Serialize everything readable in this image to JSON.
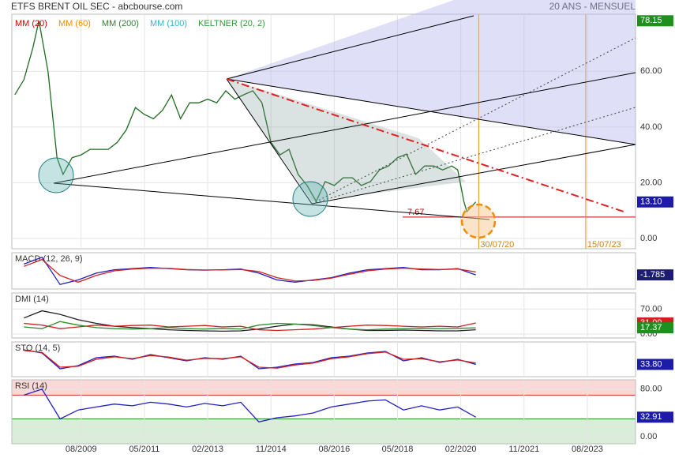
{
  "chart_data": [
    {
      "type": "line",
      "title": "ETFS BRENT OIL SEC - abcbourse.com",
      "subtitle": "20 ANS - MENSUEL",
      "legend": [
        {
          "name": "MM (20)",
          "color": "#d00000"
        },
        {
          "name": "MM (60)",
          "color": "#f08c00"
        },
        {
          "name": "MM (200)",
          "color": "#2e7d32"
        },
        {
          "name": "MM (100)",
          "color": "#3ab0c8"
        },
        {
          "name": "KELTNER (20, 2)",
          "color": "#2e9a3a"
        }
      ],
      "x": [
        "10/2007",
        "01/2008",
        "04/2008",
        "06/2008",
        "09/2008",
        "12/2008",
        "02/2009",
        "05/2009",
        "08/2009",
        "11/2009",
        "02/2010",
        "05/2010",
        "08/2010",
        "11/2010",
        "02/2011",
        "05/2011",
        "08/2011",
        "11/2011",
        "02/2012",
        "05/2012",
        "08/2012",
        "11/2012",
        "02/2013",
        "05/2013",
        "08/2013",
        "11/2013",
        "02/2014",
        "05/2014",
        "08/2014",
        "11/2014",
        "02/2015",
        "05/2015",
        "08/2015",
        "11/2015",
        "02/2016",
        "05/2016",
        "08/2016",
        "11/2016",
        "02/2017",
        "05/2017",
        "08/2017",
        "11/2017",
        "02/2018",
        "05/2018",
        "08/2018",
        "11/2018",
        "02/2019",
        "05/2019",
        "08/2019",
        "11/2019",
        "01/2020",
        "03/2020",
        "04/2020",
        "07/2020"
      ],
      "series": [
        {
          "color": "#1f6b1f",
          "badge": "#1c1ca8",
          "values": [
            51.6,
            57,
            68.5,
            78.15,
            60,
            29,
            23,
            29,
            30,
            32,
            32,
            32,
            34.5,
            39,
            47,
            44.5,
            43,
            46,
            51.5,
            43,
            48.7,
            48.7,
            50,
            48.7,
            53,
            50,
            51.6,
            53,
            48.7,
            34.5,
            30,
            32,
            23,
            19,
            13.3,
            20.4,
            19,
            21.8,
            21.8,
            19,
            20.4,
            24.6,
            26,
            29,
            30.3,
            23,
            26,
            26,
            24.6,
            26,
            24.6,
            13.3,
            9.6,
            13.1
          ],
          "last_label": "13.10"
        }
      ],
      "high": 78.15,
      "high_label": "78.15",
      "annotations": [
        {
          "label": "7.67",
          "value": 7.67
        }
      ],
      "date_lines": [
        {
          "label": "30/07/20"
        },
        {
          "label": "15/07/23"
        }
      ],
      "xlim": [
        "09/2007",
        "12/2024"
      ],
      "xticks": [
        "08/2009",
        "05/2011",
        "02/2013",
        "11/2014",
        "08/2016",
        "05/2018",
        "02/2020",
        "11/2021",
        "08/2023"
      ],
      "ylim": [
        -3.7,
        80.5
      ],
      "yticks": [
        {
          "value": 0,
          "label": "0.00"
        },
        {
          "value": 20,
          "label": "20.00"
        },
        {
          "value": 40,
          "label": "40.00"
        },
        {
          "value": 60,
          "label": "60.00"
        }
      ],
      "grid": true
    },
    {
      "type": "line",
      "title": "MACD (12, 26, 9)",
      "x": [
        "01/2008",
        "07/2008",
        "01/2009",
        "07/2009",
        "01/2010",
        "07/2010",
        "01/2011",
        "07/2011",
        "01/2012",
        "07/2012",
        "01/2013",
        "07/2013",
        "01/2014",
        "07/2014",
        "01/2015",
        "07/2015",
        "01/2016",
        "07/2016",
        "01/2017",
        "07/2017",
        "01/2018",
        "07/2018",
        "01/2019",
        "07/2019",
        "01/2020",
        "07/2020"
      ],
      "series": [
        {
          "color": "#2020c0",
          "badge": "#1c1c70",
          "values": [
            3,
            6,
            -6,
            -4,
            -1,
            0.5,
            1,
            1.5,
            1,
            0.5,
            0.3,
            0.5,
            0.8,
            -1,
            -4,
            -5,
            -4,
            -3,
            -1,
            0.5,
            1,
            1.5,
            0.5,
            0.5,
            1,
            -1.785
          ],
          "last_label": "-1.785"
        },
        {
          "color": "#d02020",
          "values": [
            2,
            5,
            -2,
            -5,
            -2,
            0,
            0.8,
            1.2,
            1.1,
            0.6,
            0.4,
            0.4,
            0.6,
            -0.3,
            -3,
            -4.5,
            -4.2,
            -3.2,
            -1.5,
            0,
            0.8,
            1.2,
            0.8,
            0.6,
            0.8,
            -0.5
          ]
        }
      ],
      "ylim": [
        -8,
        8
      ],
      "yticks": []
    },
    {
      "type": "line",
      "title": "DMI (14)",
      "x": [
        "01/2008",
        "07/2008",
        "01/2009",
        "07/2009",
        "01/2010",
        "07/2010",
        "01/2011",
        "07/2011",
        "01/2012",
        "07/2012",
        "01/2013",
        "07/2013",
        "01/2014",
        "07/2014",
        "01/2015",
        "07/2015",
        "01/2016",
        "07/2016",
        "01/2017",
        "07/2017",
        "01/2018",
        "07/2018",
        "01/2019",
        "07/2019",
        "01/2020",
        "07/2020"
      ],
      "series": [
        {
          "color": "#202020",
          "values": [
            45,
            65,
            55,
            40,
            30,
            22,
            18,
            15,
            12,
            10,
            9,
            8,
            9,
            14,
            22,
            28,
            26,
            20,
            14,
            10,
            10,
            11,
            10,
            9,
            9,
            12
          ]
        },
        {
          "color": "#d02020",
          "badge": "#d02020",
          "values": [
            30,
            25,
            15,
            20,
            25,
            22,
            24,
            25,
            20,
            22,
            24,
            20,
            22,
            12,
            10,
            12,
            14,
            18,
            22,
            25,
            24,
            22,
            20,
            22,
            20,
            31.09
          ],
          "last_label": "31.09"
        },
        {
          "color": "#2e8b2e",
          "badge": "#1f8f1f",
          "values": [
            20,
            15,
            35,
            25,
            18,
            15,
            14,
            15,
            18,
            15,
            14,
            16,
            14,
            25,
            30,
            28,
            24,
            18,
            14,
            12,
            14,
            15,
            16,
            15,
            16,
            17.37
          ],
          "last_label": "17.37"
        }
      ],
      "ylim": [
        -11,
        115
      ],
      "yticks": [
        {
          "value": 0,
          "label": "0.00"
        },
        {
          "value": 70,
          "label": "70.00"
        }
      ]
    },
    {
      "type": "line",
      "title": "STO (14, 5)",
      "x": [
        "01/2008",
        "07/2008",
        "01/2009",
        "07/2009",
        "01/2010",
        "07/2010",
        "01/2011",
        "07/2011",
        "01/2012",
        "07/2012",
        "01/2013",
        "07/2013",
        "01/2014",
        "07/2014",
        "01/2015",
        "07/2015",
        "01/2016",
        "07/2016",
        "01/2017",
        "07/2017",
        "01/2018",
        "07/2018",
        "01/2019",
        "07/2019",
        "01/2020",
        "07/2020"
      ],
      "series": [
        {
          "color": "#2020c0",
          "badge": "#1c1ca8",
          "values": [
            80,
            70,
            20,
            30,
            55,
            60,
            50,
            65,
            55,
            45,
            55,
            50,
            60,
            20,
            25,
            35,
            40,
            55,
            60,
            70,
            75,
            45,
            55,
            40,
            50,
            33.8
          ],
          "last_label": "33.80"
        },
        {
          "color": "#d02020",
          "values": [
            78,
            72,
            25,
            28,
            50,
            58,
            52,
            62,
            57,
            47,
            53,
            52,
            58,
            25,
            22,
            32,
            38,
            52,
            58,
            68,
            73,
            50,
            52,
            42,
            48,
            38
          ]
        }
      ],
      "ylim": [
        -5,
        105
      ],
      "yticks": []
    },
    {
      "type": "line",
      "title": "RSI (14)",
      "x": [
        "01/2008",
        "07/2008",
        "01/2009",
        "07/2009",
        "01/2010",
        "07/2010",
        "01/2011",
        "07/2011",
        "01/2012",
        "07/2012",
        "01/2013",
        "07/2013",
        "01/2014",
        "07/2014",
        "01/2015",
        "07/2015",
        "01/2016",
        "07/2016",
        "01/2017",
        "07/2017",
        "01/2018",
        "07/2018",
        "01/2019",
        "07/2019",
        "01/2020",
        "07/2020"
      ],
      "series": [
        {
          "color": "#2020c0",
          "badge": "#1c1ca8",
          "values": [
            70,
            80,
            30,
            45,
            50,
            55,
            52,
            58,
            55,
            50,
            56,
            52,
            58,
            25,
            32,
            35,
            40,
            50,
            55,
            60,
            62,
            45,
            52,
            45,
            50,
            32.91
          ],
          "last_label": "32.91"
        }
      ],
      "overbought": 70,
      "oversold": 30,
      "ylim": [
        -11.8,
        95.7
      ],
      "yticks": [
        {
          "value": 0,
          "label": "0.00"
        },
        {
          "value": 80,
          "label": "80.00"
        }
      ]
    }
  ]
}
